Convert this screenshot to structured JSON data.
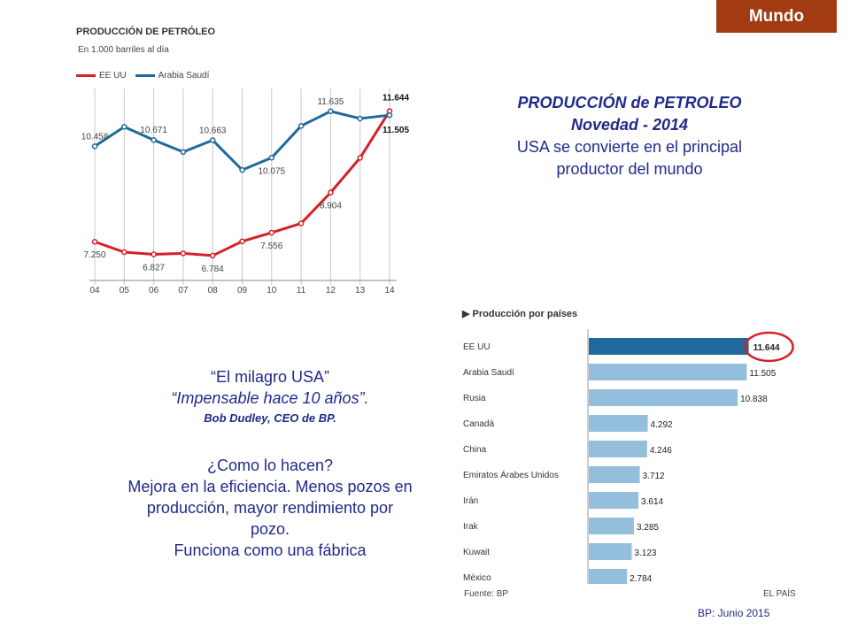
{
  "badge": "Mundo",
  "line_chart": {
    "title": "PRODUCCIÓN DE PETRÓLEO",
    "subtitle": "En 1.000 barriles al día",
    "colors": {
      "usa": "#d6202a",
      "saudi": "#1f6a9a"
    }
  },
  "headline": {
    "line1": "PRODUCCIÓN de PETROLEO",
    "line2": "Novedad - 2014",
    "line3": "USA se convierte en el principal",
    "line4": "productor del mundo"
  },
  "quote": {
    "line1": "“El milagro USA”",
    "line2": "“Impensable hace 10 años”.",
    "line3": "Bob Dudley, CEO de BP."
  },
  "body": {
    "line1": "¿Como lo hacen?",
    "line2": "Mejora en la eficiencia.  Menos pozos en",
    "line3": "producción, mayor rendimiento  por",
    "line4": "pozo.",
    "line5": "Funciona como una fábrica"
  },
  "bar_chart": {
    "title": "Producción por países",
    "source": "Fuente: BP",
    "brand": "EL PAÍS",
    "colors": {
      "highlight": "#1f6a9a",
      "normal": "#93bfdc",
      "circle": "#d6202a"
    }
  },
  "footnote": "BP: Junio 2015",
  "chart_data": [
    {
      "type": "line",
      "title": "PRODUCCIÓN DE PETRÓLEO",
      "subtitle": "En 1.000 barriles al día",
      "x": [
        "04",
        "05",
        "06",
        "07",
        "08",
        "09",
        "10",
        "11",
        "12",
        "13",
        "14"
      ],
      "series": [
        {
          "name": "EE UU",
          "values": [
            7250,
            6900,
            6827,
            6860,
            6784,
            7263,
            7556,
            7868,
            8904,
            10071,
            11644
          ]
        },
        {
          "name": "Arabia Saudí",
          "values": [
            10458,
            11114,
            10671,
            10268,
            10663,
            9663,
            10075,
            11144,
            11635,
            11393,
            11505
          ]
        }
      ],
      "labels": [
        {
          "series": 1,
          "index": 0,
          "text": "10.458"
        },
        {
          "series": 1,
          "index": 2,
          "text": "10.671"
        },
        {
          "series": 1,
          "index": 4,
          "text": "10.663"
        },
        {
          "series": 1,
          "index": 6,
          "text": "10.075"
        },
        {
          "series": 1,
          "index": 8,
          "text": "11.635"
        },
        {
          "series": 1,
          "index": 10,
          "text": "11.505"
        },
        {
          "series": 0,
          "index": 0,
          "text": "7.250"
        },
        {
          "series": 0,
          "index": 2,
          "text": "6.827"
        },
        {
          "series": 0,
          "index": 4,
          "text": "6.784"
        },
        {
          "series": 0,
          "index": 6,
          "text": "7.556"
        },
        {
          "series": 0,
          "index": 8,
          "text": "8.904"
        },
        {
          "series": 0,
          "index": 10,
          "text": "11.644"
        }
      ],
      "ylim": [
        5800,
        12700
      ],
      "grid": "vertical",
      "legend": "top-left"
    },
    {
      "type": "bar",
      "title": "Producción por países",
      "orientation": "horizontal",
      "categories": [
        "EE UU",
        "Arabia Saudí",
        "Rusia",
        "Canadá",
        "China",
        "Emiratos Árabes Unidos",
        "Irán",
        "Irak",
        "Kuwait",
        "México"
      ],
      "values": [
        11644,
        11505,
        10838,
        4292,
        4246,
        3712,
        3614,
        3285,
        3123,
        2784
      ],
      "value_labels": [
        "11.644",
        "11.505",
        "10.838",
        "4.292",
        "4.246",
        "3.712",
        "3.614",
        "3.285",
        "3.123",
        "2.784"
      ],
      "highlight": "EE UU",
      "xlim": [
        0,
        11800
      ]
    }
  ]
}
